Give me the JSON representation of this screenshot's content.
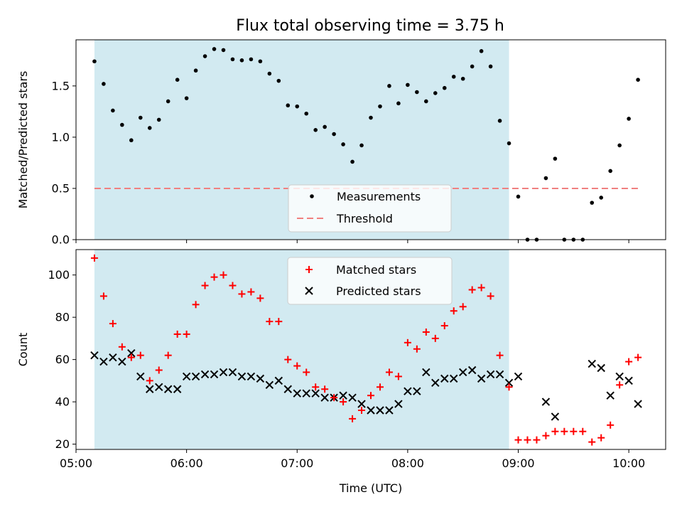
{
  "title": "Flux total observing time = 3.75 h",
  "colors": {
    "shade": "#add8e6",
    "measurements": "#000000",
    "threshold": "#f08080",
    "matched": "#ff0000",
    "predicted": "#000000"
  },
  "chart_data": [
    {
      "type": "scatter",
      "panel": "top",
      "ylabel": "Matched/Predicted stars",
      "ylim": [
        0,
        1.95
      ],
      "yticks": [
        0.0,
        0.5,
        1.0,
        1.5
      ],
      "ytick_labels": [
        "0.0",
        "0.5",
        "1.0",
        "1.5"
      ],
      "xlim": [
        "05:00",
        "10:20"
      ],
      "observing_window": [
        "05:10",
        "08:55"
      ],
      "legend_position": "lower-center",
      "threshold": {
        "name": "Threshold",
        "value": 0.5,
        "x_range": [
          "05:10",
          "10:05"
        ]
      },
      "series": [
        {
          "name": "Measurements",
          "x": [
            "05:10",
            "05:15",
            "05:20",
            "05:25",
            "05:30",
            "05:35",
            "05:40",
            "05:45",
            "05:50",
            "05:55",
            "06:00",
            "06:05",
            "06:10",
            "06:15",
            "06:20",
            "06:25",
            "06:30",
            "06:35",
            "06:40",
            "06:45",
            "06:50",
            "06:55",
            "07:00",
            "07:05",
            "07:10",
            "07:15",
            "07:20",
            "07:25",
            "07:30",
            "07:35",
            "07:40",
            "07:45",
            "07:50",
            "07:55",
            "08:00",
            "08:05",
            "08:10",
            "08:15",
            "08:20",
            "08:25",
            "08:30",
            "08:35",
            "08:40",
            "08:45",
            "08:50",
            "08:55",
            "09:00",
            "09:05",
            "09:10",
            "09:15",
            "09:20",
            "09:25",
            "09:30",
            "09:35",
            "09:40",
            "09:45",
            "09:50",
            "09:55",
            "10:00",
            "10:05"
          ],
          "y": [
            1.74,
            1.52,
            1.26,
            1.12,
            0.97,
            1.19,
            1.09,
            1.17,
            1.35,
            1.56,
            1.38,
            1.65,
            1.79,
            1.86,
            1.85,
            1.76,
            1.75,
            1.76,
            1.74,
            1.62,
            1.55,
            1.31,
            1.3,
            1.23,
            1.07,
            1.1,
            1.03,
            0.93,
            0.76,
            0.92,
            1.19,
            1.3,
            1.5,
            1.33,
            1.51,
            1.44,
            1.35,
            1.43,
            1.48,
            1.59,
            1.57,
            1.69,
            1.84,
            1.69,
            1.16,
            0.94,
            0.42,
            0.0,
            0.0,
            0.6,
            0.79,
            0.0,
            0.0,
            0.0,
            0.36,
            0.41,
            0.67,
            0.92,
            1.18,
            1.56
          ]
        }
      ]
    },
    {
      "type": "scatter",
      "panel": "bottom",
      "xlabel": "Time (UTC)",
      "ylabel": "Count",
      "ylim": [
        17.5,
        112
      ],
      "yticks": [
        20,
        40,
        60,
        80,
        100
      ],
      "ytick_labels": [
        "20",
        "40",
        "60",
        "80",
        "100"
      ],
      "xlim": [
        "05:00",
        "10:20"
      ],
      "xticks": [
        "05:00",
        "06:00",
        "07:00",
        "08:00",
        "09:00",
        "10:00"
      ],
      "xtick_labels": [
        "05:00",
        "06:00",
        "07:00",
        "08:00",
        "09:00",
        "10:00"
      ],
      "observing_window": [
        "05:10",
        "08:55"
      ],
      "legend_position": "upper-center",
      "series": [
        {
          "name": "Matched stars",
          "x": [
            "05:10",
            "05:15",
            "05:20",
            "05:25",
            "05:30",
            "05:35",
            "05:40",
            "05:45",
            "05:50",
            "05:55",
            "06:00",
            "06:05",
            "06:10",
            "06:15",
            "06:20",
            "06:25",
            "06:30",
            "06:35",
            "06:40",
            "06:45",
            "06:50",
            "06:55",
            "07:00",
            "07:05",
            "07:10",
            "07:15",
            "07:20",
            "07:25",
            "07:30",
            "07:35",
            "07:40",
            "07:45",
            "07:50",
            "07:55",
            "08:00",
            "08:05",
            "08:10",
            "08:15",
            "08:20",
            "08:25",
            "08:30",
            "08:35",
            "08:40",
            "08:45",
            "08:50",
            "08:55",
            "09:00",
            "09:05",
            "09:10",
            "09:15",
            "09:20",
            "09:25",
            "09:30",
            "09:35",
            "09:40",
            "09:45",
            "09:50",
            "09:55",
            "10:00",
            "10:05"
          ],
          "y": [
            108,
            90,
            77,
            66,
            61,
            62,
            50,
            55,
            62,
            72,
            72,
            86,
            95,
            99,
            100,
            95,
            91,
            92,
            89,
            78,
            78,
            60,
            57,
            54,
            47,
            46,
            42,
            40,
            32,
            36,
            43,
            47,
            54,
            52,
            68,
            65,
            73,
            70,
            76,
            83,
            85,
            93,
            94,
            90,
            62,
            47,
            22,
            22,
            22,
            24,
            26,
            26,
            26,
            26,
            21,
            23,
            29,
            48,
            59,
            61
          ]
        },
        {
          "name": "Predicted stars",
          "x": [
            "05:10",
            "05:15",
            "05:20",
            "05:25",
            "05:30",
            "05:35",
            "05:40",
            "05:45",
            "05:50",
            "05:55",
            "06:00",
            "06:05",
            "06:10",
            "06:15",
            "06:20",
            "06:25",
            "06:30",
            "06:35",
            "06:40",
            "06:45",
            "06:50",
            "06:55",
            "07:00",
            "07:05",
            "07:10",
            "07:15",
            "07:20",
            "07:25",
            "07:30",
            "07:35",
            "07:40",
            "07:45",
            "07:50",
            "07:55",
            "08:00",
            "08:05",
            "08:10",
            "08:15",
            "08:20",
            "08:25",
            "08:30",
            "08:35",
            "08:40",
            "08:45",
            "08:50",
            "08:55",
            "09:00",
            "09:15",
            "09:20",
            "09:40",
            "09:45",
            "09:50",
            "09:55",
            "10:00",
            "10:05"
          ],
          "y": [
            62,
            59,
            61,
            59,
            63,
            52,
            46,
            47,
            46,
            46,
            52,
            52,
            53,
            53,
            54,
            54,
            52,
            52,
            51,
            48,
            50,
            46,
            44,
            44,
            44,
            42,
            42,
            43,
            42,
            39,
            36,
            36,
            36,
            39,
            45,
            45,
            54,
            49,
            51,
            51,
            54,
            55,
            51,
            53,
            53,
            49,
            52,
            40,
            33,
            58,
            56,
            43,
            52,
            50,
            39
          ]
        }
      ]
    }
  ]
}
